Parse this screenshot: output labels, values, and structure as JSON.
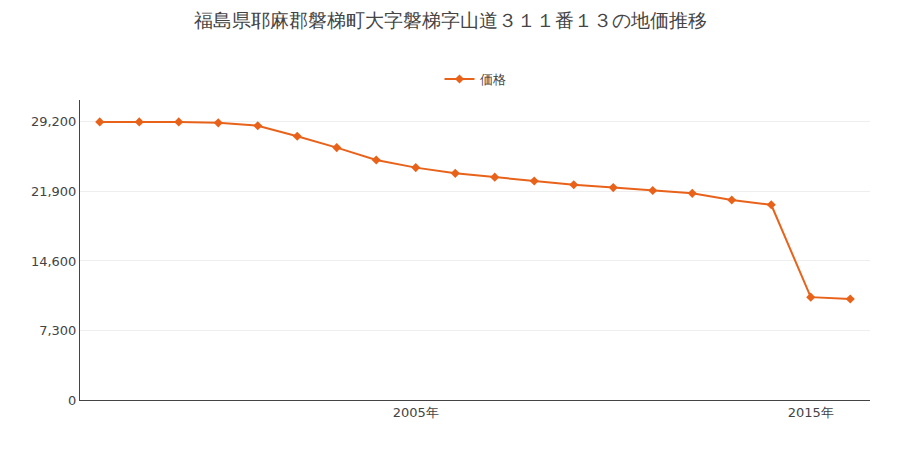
{
  "chart_data": {
    "type": "line",
    "title": "福島県耶麻郡磐梯町大字磐梯字山道３１１番１３の地価推移",
    "x": [
      1997,
      1998,
      1999,
      2000,
      2001,
      2002,
      2003,
      2004,
      2005,
      2006,
      2007,
      2008,
      2009,
      2010,
      2011,
      2012,
      2013,
      2014,
      2015,
      2016
    ],
    "series": [
      {
        "name": "価格",
        "color": "#e8621a",
        "marker": "diamond",
        "values": [
          29200,
          29200,
          29200,
          29100,
          28800,
          27700,
          26500,
          25200,
          24400,
          23800,
          23400,
          23000,
          22600,
          22300,
          22000,
          21700,
          21000,
          20500,
          10800,
          10600
        ]
      }
    ],
    "xlim": [
      1996.5,
      2016.5
    ],
    "xticks": [
      {
        "value": 2005,
        "label": "2005年"
      },
      {
        "value": 2015,
        "label": "2015年"
      }
    ],
    "ylim": [
      0,
      31500
    ],
    "yticks": [
      0,
      {
        "value": 7300,
        "label": "7,300"
      },
      {
        "value": 14600,
        "label": "14,600"
      },
      {
        "value": 21900,
        "label": "21,900"
      },
      {
        "value": 29200,
        "label": "29,200"
      }
    ],
    "grid": "y",
    "legend": "top"
  }
}
